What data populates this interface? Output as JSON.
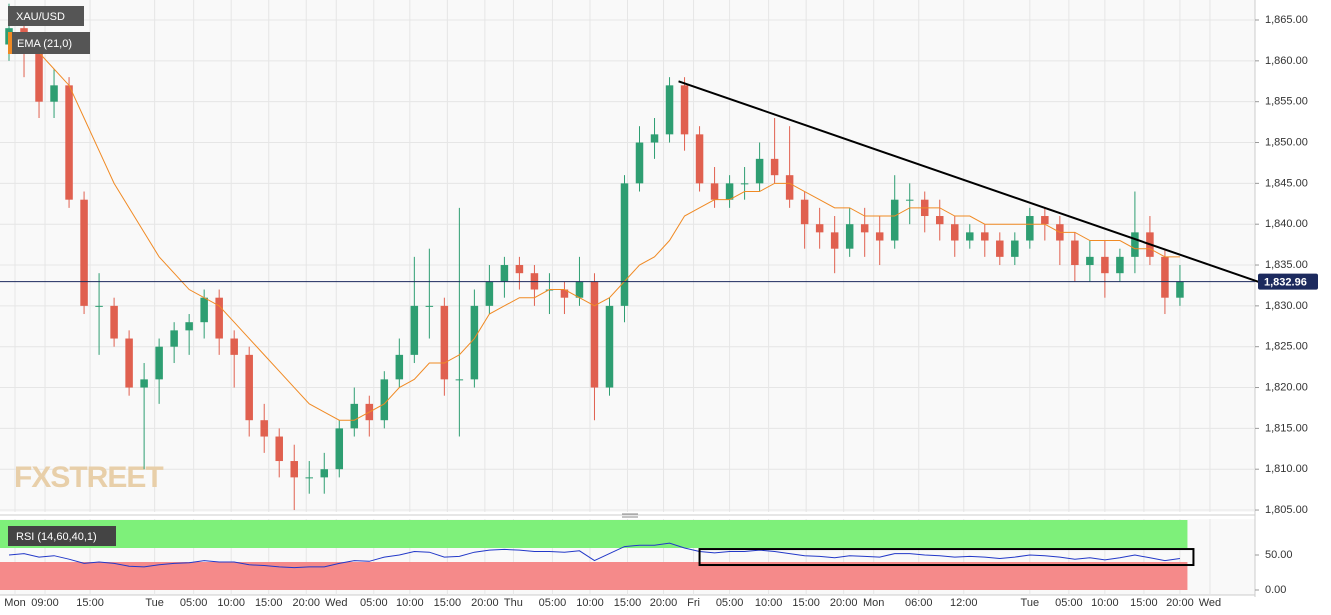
{
  "chart_data": [
    {
      "type": "candlestick",
      "name": "XAU/USD",
      "watermark": "FXSTREET",
      "up_color": "#2e9e72",
      "down_color": "#e0604f",
      "ohlc": [
        [
          1862,
          1867,
          1860,
          1864
        ],
        [
          1864,
          1865,
          1858,
          1861
        ],
        [
          1861,
          1862,
          1853,
          1855
        ],
        [
          1855,
          1859,
          1853,
          1857
        ],
        [
          1857,
          1858,
          1842,
          1843
        ],
        [
          1843,
          1844,
          1829,
          1830
        ],
        [
          1830,
          1834,
          1824,
          1830
        ],
        [
          1830,
          1831,
          1825,
          1826
        ],
        [
          1826,
          1827,
          1819,
          1820
        ],
        [
          1820,
          1823,
          1810,
          1821
        ],
        [
          1821,
          1826,
          1818,
          1825
        ],
        [
          1825,
          1828,
          1823,
          1827
        ],
        [
          1827,
          1829,
          1824,
          1828
        ],
        [
          1828,
          1832,
          1826,
          1831
        ],
        [
          1831,
          1832,
          1824,
          1826
        ],
        [
          1826,
          1827,
          1820,
          1824
        ],
        [
          1824,
          1825,
          1814,
          1816
        ],
        [
          1816,
          1818,
          1812,
          1814
        ],
        [
          1814,
          1815,
          1809,
          1811
        ],
        [
          1811,
          1813,
          1805,
          1809
        ],
        [
          1809,
          1811,
          1807,
          1809
        ],
        [
          1809,
          1812,
          1807,
          1810
        ],
        [
          1810,
          1816,
          1809,
          1815
        ],
        [
          1815,
          1820,
          1814,
          1818
        ],
        [
          1818,
          1819,
          1814,
          1816
        ],
        [
          1816,
          1822,
          1815,
          1821
        ],
        [
          1821,
          1826,
          1820,
          1824
        ],
        [
          1824,
          1836,
          1823,
          1830
        ],
        [
          1830,
          1837,
          1826,
          1830
        ],
        [
          1830,
          1831,
          1819,
          1821
        ],
        [
          1821,
          1842,
          1814,
          1821
        ],
        [
          1821,
          1832,
          1820,
          1830
        ],
        [
          1830,
          1835,
          1829,
          1833
        ],
        [
          1833,
          1836,
          1831,
          1835
        ],
        [
          1835,
          1836,
          1832,
          1834
        ],
        [
          1834,
          1835,
          1830,
          1832
        ],
        [
          1832,
          1834,
          1829,
          1832
        ],
        [
          1832,
          1833,
          1829,
          1831
        ],
        [
          1831,
          1836,
          1830,
          1833
        ],
        [
          1833,
          1834,
          1816,
          1820
        ],
        [
          1820,
          1831,
          1819,
          1830
        ],
        [
          1830,
          1846,
          1828,
          1845
        ],
        [
          1845,
          1852,
          1844,
          1850
        ],
        [
          1850,
          1853,
          1848,
          1851
        ],
        [
          1851,
          1858,
          1850,
          1857
        ],
        [
          1857,
          1858,
          1849,
          1851
        ],
        [
          1851,
          1852,
          1844,
          1845
        ],
        [
          1845,
          1847,
          1842,
          1843
        ],
        [
          1843,
          1846,
          1842,
          1845
        ],
        [
          1845,
          1847,
          1843,
          1845
        ],
        [
          1845,
          1850,
          1844,
          1848
        ],
        [
          1848,
          1853,
          1845,
          1846
        ],
        [
          1846,
          1852,
          1842,
          1843
        ],
        [
          1843,
          1844,
          1837,
          1840
        ],
        [
          1840,
          1842,
          1837,
          1839
        ],
        [
          1839,
          1841,
          1834,
          1837
        ],
        [
          1837,
          1842,
          1836,
          1840
        ],
        [
          1840,
          1842,
          1836,
          1839
        ],
        [
          1839,
          1841,
          1835,
          1838
        ],
        [
          1838,
          1846,
          1837,
          1843
        ],
        [
          1843,
          1845,
          1840,
          1843
        ],
        [
          1843,
          1844,
          1839,
          1841
        ],
        [
          1841,
          1843,
          1838,
          1840
        ],
        [
          1840,
          1841,
          1836,
          1838
        ],
        [
          1838,
          1840,
          1837,
          1839
        ],
        [
          1839,
          1840,
          1836,
          1838
        ],
        [
          1838,
          1839,
          1835,
          1836
        ],
        [
          1836,
          1839,
          1835,
          1838
        ],
        [
          1838,
          1842,
          1837,
          1841
        ],
        [
          1841,
          1842,
          1838,
          1840
        ],
        [
          1840,
          1841,
          1835,
          1838
        ],
        [
          1838,
          1839,
          1833,
          1835
        ],
        [
          1835,
          1838,
          1833,
          1836
        ],
        [
          1836,
          1838,
          1831,
          1834
        ],
        [
          1834,
          1837,
          1833,
          1836
        ],
        [
          1836,
          1844,
          1834,
          1839
        ],
        [
          1839,
          1841,
          1835,
          1836
        ],
        [
          1836,
          1837,
          1829,
          1831
        ],
        [
          1831,
          1835,
          1830,
          1833
        ]
      ],
      "series": [
        {
          "name": "EMA (21,0)",
          "color": "#f08a24",
          "values": [
            1863,
            1862,
            1861,
            1859,
            1857,
            1853,
            1849,
            1845,
            1842,
            1839,
            1836,
            1834,
            1832,
            1831,
            1830,
            1828,
            1826,
            1824,
            1822,
            1820,
            1818,
            1817,
            1816,
            1816,
            1817,
            1818,
            1820,
            1821,
            1823,
            1823,
            1824,
            1826,
            1829,
            1830,
            1831,
            1831,
            1832,
            1832,
            1831,
            1830,
            1831,
            1833,
            1835,
            1836,
            1838,
            1841,
            1842,
            1843,
            1843,
            1844,
            1844,
            1845,
            1845,
            1844,
            1843,
            1842,
            1842,
            1841,
            1841,
            1841,
            1842,
            1842,
            1842,
            1841,
            1841,
            1840,
            1840,
            1840,
            1840,
            1840,
            1839,
            1839,
            1838,
            1838,
            1838,
            1837,
            1837,
            1836,
            1836
          ]
        }
      ],
      "last_price": {
        "value": 1832.96,
        "label": "1,832.96"
      },
      "trendline": {
        "x": [
          44.6,
          83.3
        ],
        "y": [
          1857.5,
          1832.9
        ]
      },
      "xlim": [
        -0.6,
        83
      ],
      "xticks": [
        {
          "value": 0.4,
          "label": "Mon"
        },
        {
          "value": 2.4,
          "label": "09:00"
        },
        {
          "value": 5.4,
          "label": "15:00"
        },
        {
          "value": 9.7,
          "label": "Tue"
        },
        {
          "value": 12.3,
          "label": "05:00"
        },
        {
          "value": 14.8,
          "label": "10:00"
        },
        {
          "value": 17.3,
          "label": "15:00"
        },
        {
          "value": 19.8,
          "label": "20:00"
        },
        {
          "value": 21.8,
          "label": "Wed"
        },
        {
          "value": 24.3,
          "label": "05:00"
        },
        {
          "value": 26.7,
          "label": "10:00"
        },
        {
          "value": 29.2,
          "label": "15:00"
        },
        {
          "value": 31.7,
          "label": "20:00"
        },
        {
          "value": 33.6,
          "label": "Thu"
        },
        {
          "value": 36.2,
          "label": "05:00"
        },
        {
          "value": 38.7,
          "label": "10:00"
        },
        {
          "value": 41.2,
          "label": "15:00"
        },
        {
          "value": 43.6,
          "label": "20:00"
        },
        {
          "value": 45.6,
          "label": "Fri"
        },
        {
          "value": 48.0,
          "label": "05:00"
        },
        {
          "value": 50.6,
          "label": "10:00"
        },
        {
          "value": 53.1,
          "label": "15:00"
        },
        {
          "value": 55.6,
          "label": "20:00"
        },
        {
          "value": 57.6,
          "label": "Mon"
        },
        {
          "value": 60.6,
          "label": "06:00"
        },
        {
          "value": 63.6,
          "label": "12:00"
        },
        {
          "value": 68.0,
          "label": "Tue"
        },
        {
          "value": 70.6,
          "label": "05:00"
        },
        {
          "value": 73.0,
          "label": "10:00"
        },
        {
          "value": 75.6,
          "label": "15:00"
        },
        {
          "value": 78.0,
          "label": "20:00"
        },
        {
          "value": 80.0,
          "label": "Wed"
        }
      ],
      "ylim": [
        1804.76,
        1867.45
      ],
      "yticks": [
        {
          "value": 1805,
          "label": "1,805.00"
        },
        {
          "value": 1810,
          "label": "1,810.00"
        },
        {
          "value": 1815,
          "label": "1,815.00"
        },
        {
          "value": 1820,
          "label": "1,820.00"
        },
        {
          "value": 1825,
          "label": "1,825.00"
        },
        {
          "value": 1830,
          "label": "1,830.00"
        },
        {
          "value": 1835,
          "label": "1,835.00"
        },
        {
          "value": 1840,
          "label": "1,840.00"
        },
        {
          "value": 1845,
          "label": "1,845.00"
        },
        {
          "value": 1850,
          "label": "1,850.00"
        },
        {
          "value": 1855,
          "label": "1,855.00"
        },
        {
          "value": 1860,
          "label": "1,860.00"
        },
        {
          "value": 1865,
          "label": "1,865.00"
        }
      ],
      "grid": true
    },
    {
      "type": "line",
      "name": "RSI (14,60,40,1)",
      "upper": 60,
      "lower": 40,
      "color": "#2238c8",
      "values": [
        50,
        52,
        47,
        49,
        44,
        38,
        40,
        38,
        34,
        33,
        36,
        38,
        39,
        42,
        40,
        40,
        36,
        35,
        33,
        32,
        33,
        33,
        38,
        42,
        41,
        47,
        50,
        55,
        54,
        47,
        48,
        54,
        57,
        58,
        57,
        55,
        55,
        54,
        56,
        42,
        52,
        62,
        64,
        64,
        67,
        60,
        55,
        53,
        55,
        55,
        57,
        55,
        52,
        49,
        48,
        46,
        49,
        48,
        47,
        52,
        52,
        50,
        49,
        47,
        48,
        47,
        45,
        47,
        50,
        49,
        47,
        44,
        46,
        43,
        46,
        50,
        46,
        42,
        45
      ],
      "box": {
        "x": [
          46,
          78.9
        ],
        "y": [
          58.5,
          35.7
        ]
      },
      "ylim": [
        0,
        100
      ],
      "yticks": [
        {
          "value": 0,
          "label": "0.00"
        },
        {
          "value": 50,
          "label": "50.00"
        }
      ]
    }
  ]
}
